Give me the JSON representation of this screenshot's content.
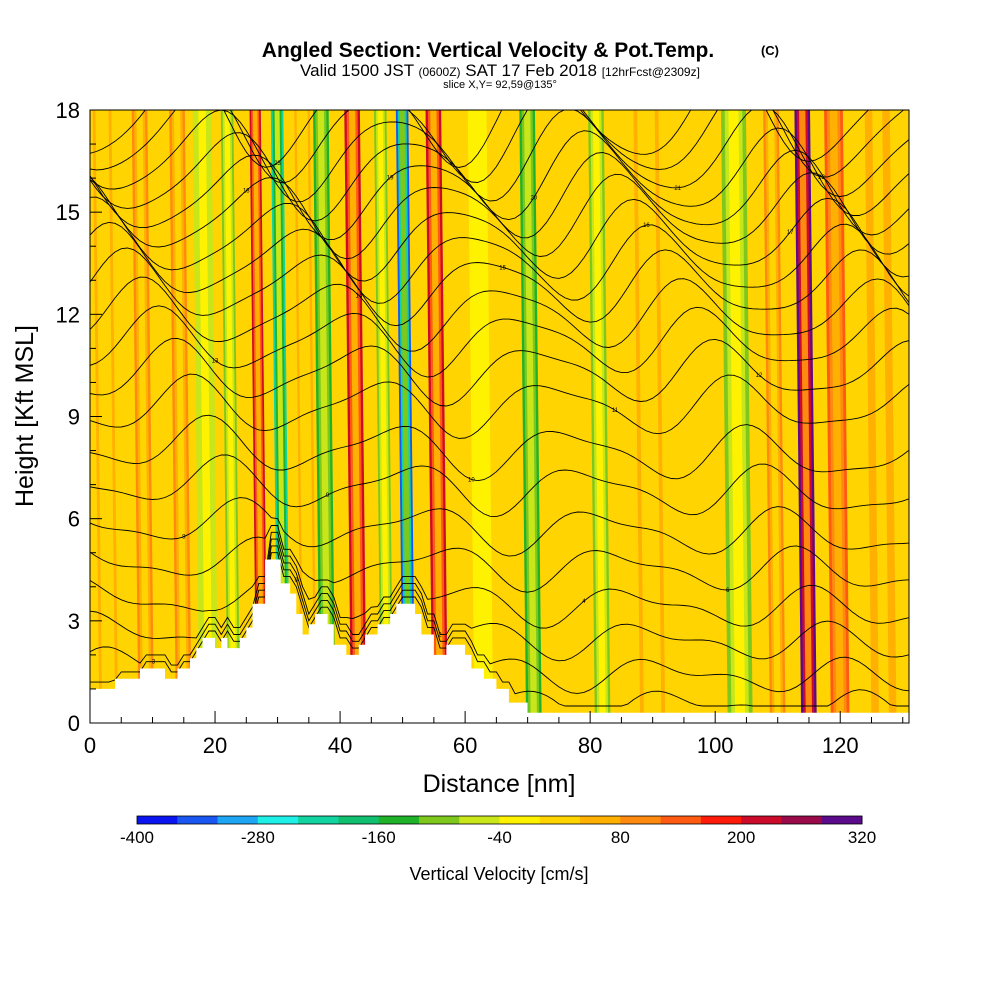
{
  "chart_data": {
    "type": "heatmap",
    "title": "Angled Section: Vertical Velocity & Pot.Temp.",
    "title_mark": "(C)",
    "subtitle_parts": [
      "Valid 1500 JST",
      "(0600Z)",
      "SAT 17 Feb 2018",
      "[12hrFcst@2309z]"
    ],
    "slice_label": "slice X,Y= 92,59@135°",
    "xlabel": "Distance [nm]",
    "ylabel": "Height [Kft MSL]",
    "xlim": [
      0,
      131
    ],
    "ylim": [
      0,
      18
    ],
    "x_ticks": [
      0,
      20,
      40,
      60,
      80,
      100,
      120
    ],
    "y_ticks": [
      0,
      3,
      6,
      9,
      12,
      15,
      18
    ],
    "x_minor_step": 5,
    "y_minor_step": 1,
    "colorbar": {
      "label": "Vertical Velocity [cm/s]",
      "levels": [
        -400,
        -360,
        -320,
        -280,
        -240,
        -200,
        -160,
        -120,
        -80,
        -40,
        0,
        40,
        80,
        120,
        160,
        200,
        240,
        280,
        320
      ],
      "tick_values": [
        -400,
        -280,
        -160,
        -40,
        80,
        200,
        320
      ],
      "colors": [
        "#0a14f0",
        "#1a56f2",
        "#1ea6f5",
        "#1ef0e8",
        "#12d4a0",
        "#10c070",
        "#1fb22a",
        "#7ec81e",
        "#c8e61a",
        "#fff200",
        "#ffd400",
        "#ffb000",
        "#ff8a10",
        "#ff5a12",
        "#ff1a0a",
        "#cc0a2a",
        "#9a0a4a",
        "#5a0a8a"
      ]
    },
    "terrain": [
      [
        0,
        1.0
      ],
      [
        4,
        1.0
      ],
      [
        4,
        1.3
      ],
      [
        8,
        1.3
      ],
      [
        8,
        1.6
      ],
      [
        12,
        1.6
      ],
      [
        12,
        1.3
      ],
      [
        14,
        1.3
      ],
      [
        14,
        1.6
      ],
      [
        16,
        1.6
      ],
      [
        16,
        1.9
      ],
      [
        17,
        1.9
      ],
      [
        17,
        2.2
      ],
      [
        18,
        2.2
      ],
      [
        18,
        2.5
      ],
      [
        20,
        2.5
      ],
      [
        20,
        2.2
      ],
      [
        21,
        2.2
      ],
      [
        21,
        2.5
      ],
      [
        22,
        2.5
      ],
      [
        22,
        2.2
      ],
      [
        24,
        2.2
      ],
      [
        24,
        2.5
      ],
      [
        25,
        2.5
      ],
      [
        25,
        2.8
      ],
      [
        26,
        2.8
      ],
      [
        26,
        3.5
      ],
      [
        28,
        3.5
      ],
      [
        28,
        4.8
      ],
      [
        30.5,
        4.8
      ],
      [
        30.5,
        4.1
      ],
      [
        32,
        4.1
      ],
      [
        32,
        3.8
      ],
      [
        33,
        3.8
      ],
      [
        33,
        3.2
      ],
      [
        34,
        3.2
      ],
      [
        34,
        2.6
      ],
      [
        35,
        2.6
      ],
      [
        35,
        2.9
      ],
      [
        36,
        2.9
      ],
      [
        36,
        3.2
      ],
      [
        38,
        3.2
      ],
      [
        38,
        2.9
      ],
      [
        39,
        2.9
      ],
      [
        39,
        2.3
      ],
      [
        41,
        2.3
      ],
      [
        41,
        2.0
      ],
      [
        43,
        2.0
      ],
      [
        43,
        2.3
      ],
      [
        44,
        2.3
      ],
      [
        44,
        2.6
      ],
      [
        46,
        2.6
      ],
      [
        46,
        2.9
      ],
      [
        48,
        2.9
      ],
      [
        48,
        3.2
      ],
      [
        49,
        3.2
      ],
      [
        49,
        3.5
      ],
      [
        52,
        3.5
      ],
      [
        52,
        3.2
      ],
      [
        53,
        3.2
      ],
      [
        53,
        2.6
      ],
      [
        55,
        2.6
      ],
      [
        55,
        2.0
      ],
      [
        57,
        2.0
      ],
      [
        57,
        2.3
      ],
      [
        60,
        2.3
      ],
      [
        60,
        2.0
      ],
      [
        61,
        2.0
      ],
      [
        61,
        1.6
      ],
      [
        63,
        1.6
      ],
      [
        63,
        1.3
      ],
      [
        65,
        1.3
      ],
      [
        65,
        1.0
      ],
      [
        67,
        1.0
      ],
      [
        67,
        0.6
      ],
      [
        70,
        0.6
      ],
      [
        70,
        0.3
      ],
      [
        131,
        0.3
      ]
    ],
    "velocity_bands": [
      {
        "x": 3,
        "value": 60,
        "width": 3
      },
      {
        "x": 9,
        "value": 90,
        "width": 2.5
      },
      {
        "x": 15,
        "value": 110,
        "width": 2.5
      },
      {
        "x": 19,
        "value": -80,
        "width": 3
      },
      {
        "x": 23,
        "value": -120,
        "width": 2
      },
      {
        "x": 27.5,
        "value": 200,
        "width": 1.8
      },
      {
        "x": 31,
        "value": -230,
        "width": 2
      },
      {
        "x": 35,
        "value": 60,
        "width": 2.5
      },
      {
        "x": 38,
        "value": -160,
        "width": 2.5
      },
      {
        "x": 43,
        "value": 230,
        "width": 2.5
      },
      {
        "x": 47.5,
        "value": -110,
        "width": 2
      },
      {
        "x": 51,
        "value": -360,
        "width": 2
      },
      {
        "x": 56,
        "value": 210,
        "width": 2.5
      },
      {
        "x": 63,
        "value": -20,
        "width": 3
      },
      {
        "x": 71,
        "value": -130,
        "width": 2.5
      },
      {
        "x": 77,
        "value": 20,
        "width": 3
      },
      {
        "x": 82,
        "value": -100,
        "width": 2.5
      },
      {
        "x": 90,
        "value": 40,
        "width": 4
      },
      {
        "x": 104,
        "value": -120,
        "width": 4
      },
      {
        "x": 110,
        "value": 80,
        "width": 2.5
      },
      {
        "x": 115,
        "value": 310,
        "width": 2.5
      },
      {
        "x": 120,
        "value": 140,
        "width": 3
      },
      {
        "x": 127,
        "value": 70,
        "width": 4
      }
    ],
    "theta_lines": [
      {
        "base": 0.8,
        "label": "-3"
      },
      {
        "base": 1.7,
        "label": "0"
      },
      {
        "base": 2.7,
        "label": "2"
      },
      {
        "base": 3.7,
        "label": "4"
      },
      {
        "base": 4.8,
        "label": "6"
      },
      {
        "base": 5.9,
        "label": "8"
      },
      {
        "base": 7.1,
        "label": "9"
      },
      {
        "base": 8.2,
        "label": "10"
      },
      {
        "base": 9.3,
        "label": "11"
      },
      {
        "base": 10.3,
        "label": "12"
      },
      {
        "base": 11.2,
        "label": "13"
      },
      {
        "base": 12.0,
        "label": "14"
      },
      {
        "base": 12.8,
        "label": "15"
      },
      {
        "base": 13.5,
        "label": "16"
      },
      {
        "base": 14.2,
        "label": "17"
      },
      {
        "base": 14.9,
        "label": "18"
      },
      {
        "base": 15.5,
        "label": "19"
      },
      {
        "base": 16.1,
        "label": "20"
      },
      {
        "base": 16.7,
        "label": "21"
      },
      {
        "base": 17.3,
        "label": "22"
      },
      {
        "base": 17.8,
        "label": "23"
      }
    ]
  }
}
